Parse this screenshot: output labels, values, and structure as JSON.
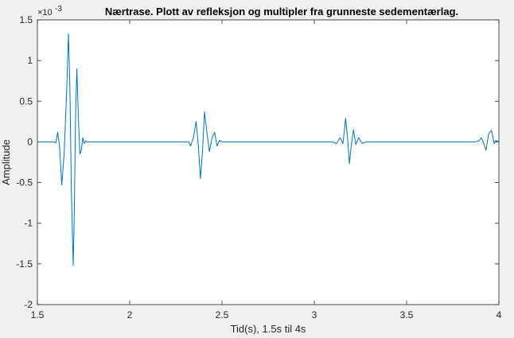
{
  "chart_data": {
    "type": "line",
    "title": "Nærtrase. Plott av refleksjon og multipler fra grunneste sedementærlag.",
    "xlabel": "Tid(s), 1.5s til 4s",
    "ylabel": "Amplitude",
    "xlim": [
      1.5,
      4
    ],
    "ylim": [
      -2,
      1.5
    ],
    "y_exponent_label": "×10",
    "y_exponent_power": "-3",
    "x_ticks": [
      {
        "value": 1.5,
        "label": "1.5"
      },
      {
        "value": 2,
        "label": "2"
      },
      {
        "value": 2.5,
        "label": "2.5"
      },
      {
        "value": 3,
        "label": "3"
      },
      {
        "value": 3.5,
        "label": "3.5"
      },
      {
        "value": 4,
        "label": "4"
      }
    ],
    "y_ticks": [
      {
        "value": 1.5,
        "label": "1.5"
      },
      {
        "value": 1,
        "label": "1"
      },
      {
        "value": 0.5,
        "label": "0.5"
      },
      {
        "value": 0,
        "label": "0"
      },
      {
        "value": -0.5,
        "label": "-0.5"
      },
      {
        "value": -1,
        "label": "-1"
      },
      {
        "value": -1.5,
        "label": "-1.5"
      },
      {
        "value": -2,
        "label": "-2"
      }
    ],
    "grid": false,
    "line_color": "#0072bd",
    "series": [
      {
        "x": [
          1.5,
          1.585,
          1.6,
          1.61,
          1.62,
          1.632,
          1.645,
          1.658,
          1.668,
          1.676,
          1.684,
          1.694,
          1.7,
          1.707,
          1.714,
          1.722,
          1.73,
          1.738,
          1.746,
          1.754,
          1.762,
          1.77,
          1.78,
          1.8,
          2.3,
          2.32,
          2.33,
          2.345,
          2.36,
          2.372,
          2.383,
          2.395,
          2.405,
          2.418,
          2.432,
          2.446,
          2.46,
          2.473,
          2.486,
          2.5,
          2.52,
          2.535,
          2.56,
          3.08,
          3.1,
          3.12,
          3.14,
          3.155,
          3.17,
          3.18,
          3.19,
          3.2,
          3.212,
          3.225,
          3.24,
          3.26,
          3.28,
          3.3,
          3.87,
          3.89,
          3.905,
          3.918,
          3.93,
          3.945,
          3.96,
          3.975,
          3.985,
          4.0
        ],
        "y": [
          0,
          0,
          -0.01,
          0.12,
          -0.05,
          -0.53,
          -0.15,
          0.6,
          1.33,
          0.7,
          -0.6,
          -1.52,
          -0.85,
          0.35,
          0.9,
          0.3,
          -0.15,
          -0.1,
          0.05,
          -0.02,
          0.01,
          0,
          0,
          0,
          0,
          0,
          -0.05,
          0.05,
          0.25,
          -0.05,
          -0.45,
          -0.1,
          0.37,
          0.12,
          -0.12,
          0.05,
          0.12,
          -0.05,
          0.02,
          0,
          0,
          0,
          0,
          0,
          0,
          -0.02,
          0.05,
          -0.02,
          0.29,
          0.05,
          -0.27,
          -0.05,
          0.15,
          -0.03,
          0.05,
          -0.02,
          0,
          0,
          0,
          0.01,
          0.05,
          -0.02,
          -0.1,
          0.1,
          0.14,
          -0.02,
          0.02,
          0
        ]
      }
    ]
  }
}
